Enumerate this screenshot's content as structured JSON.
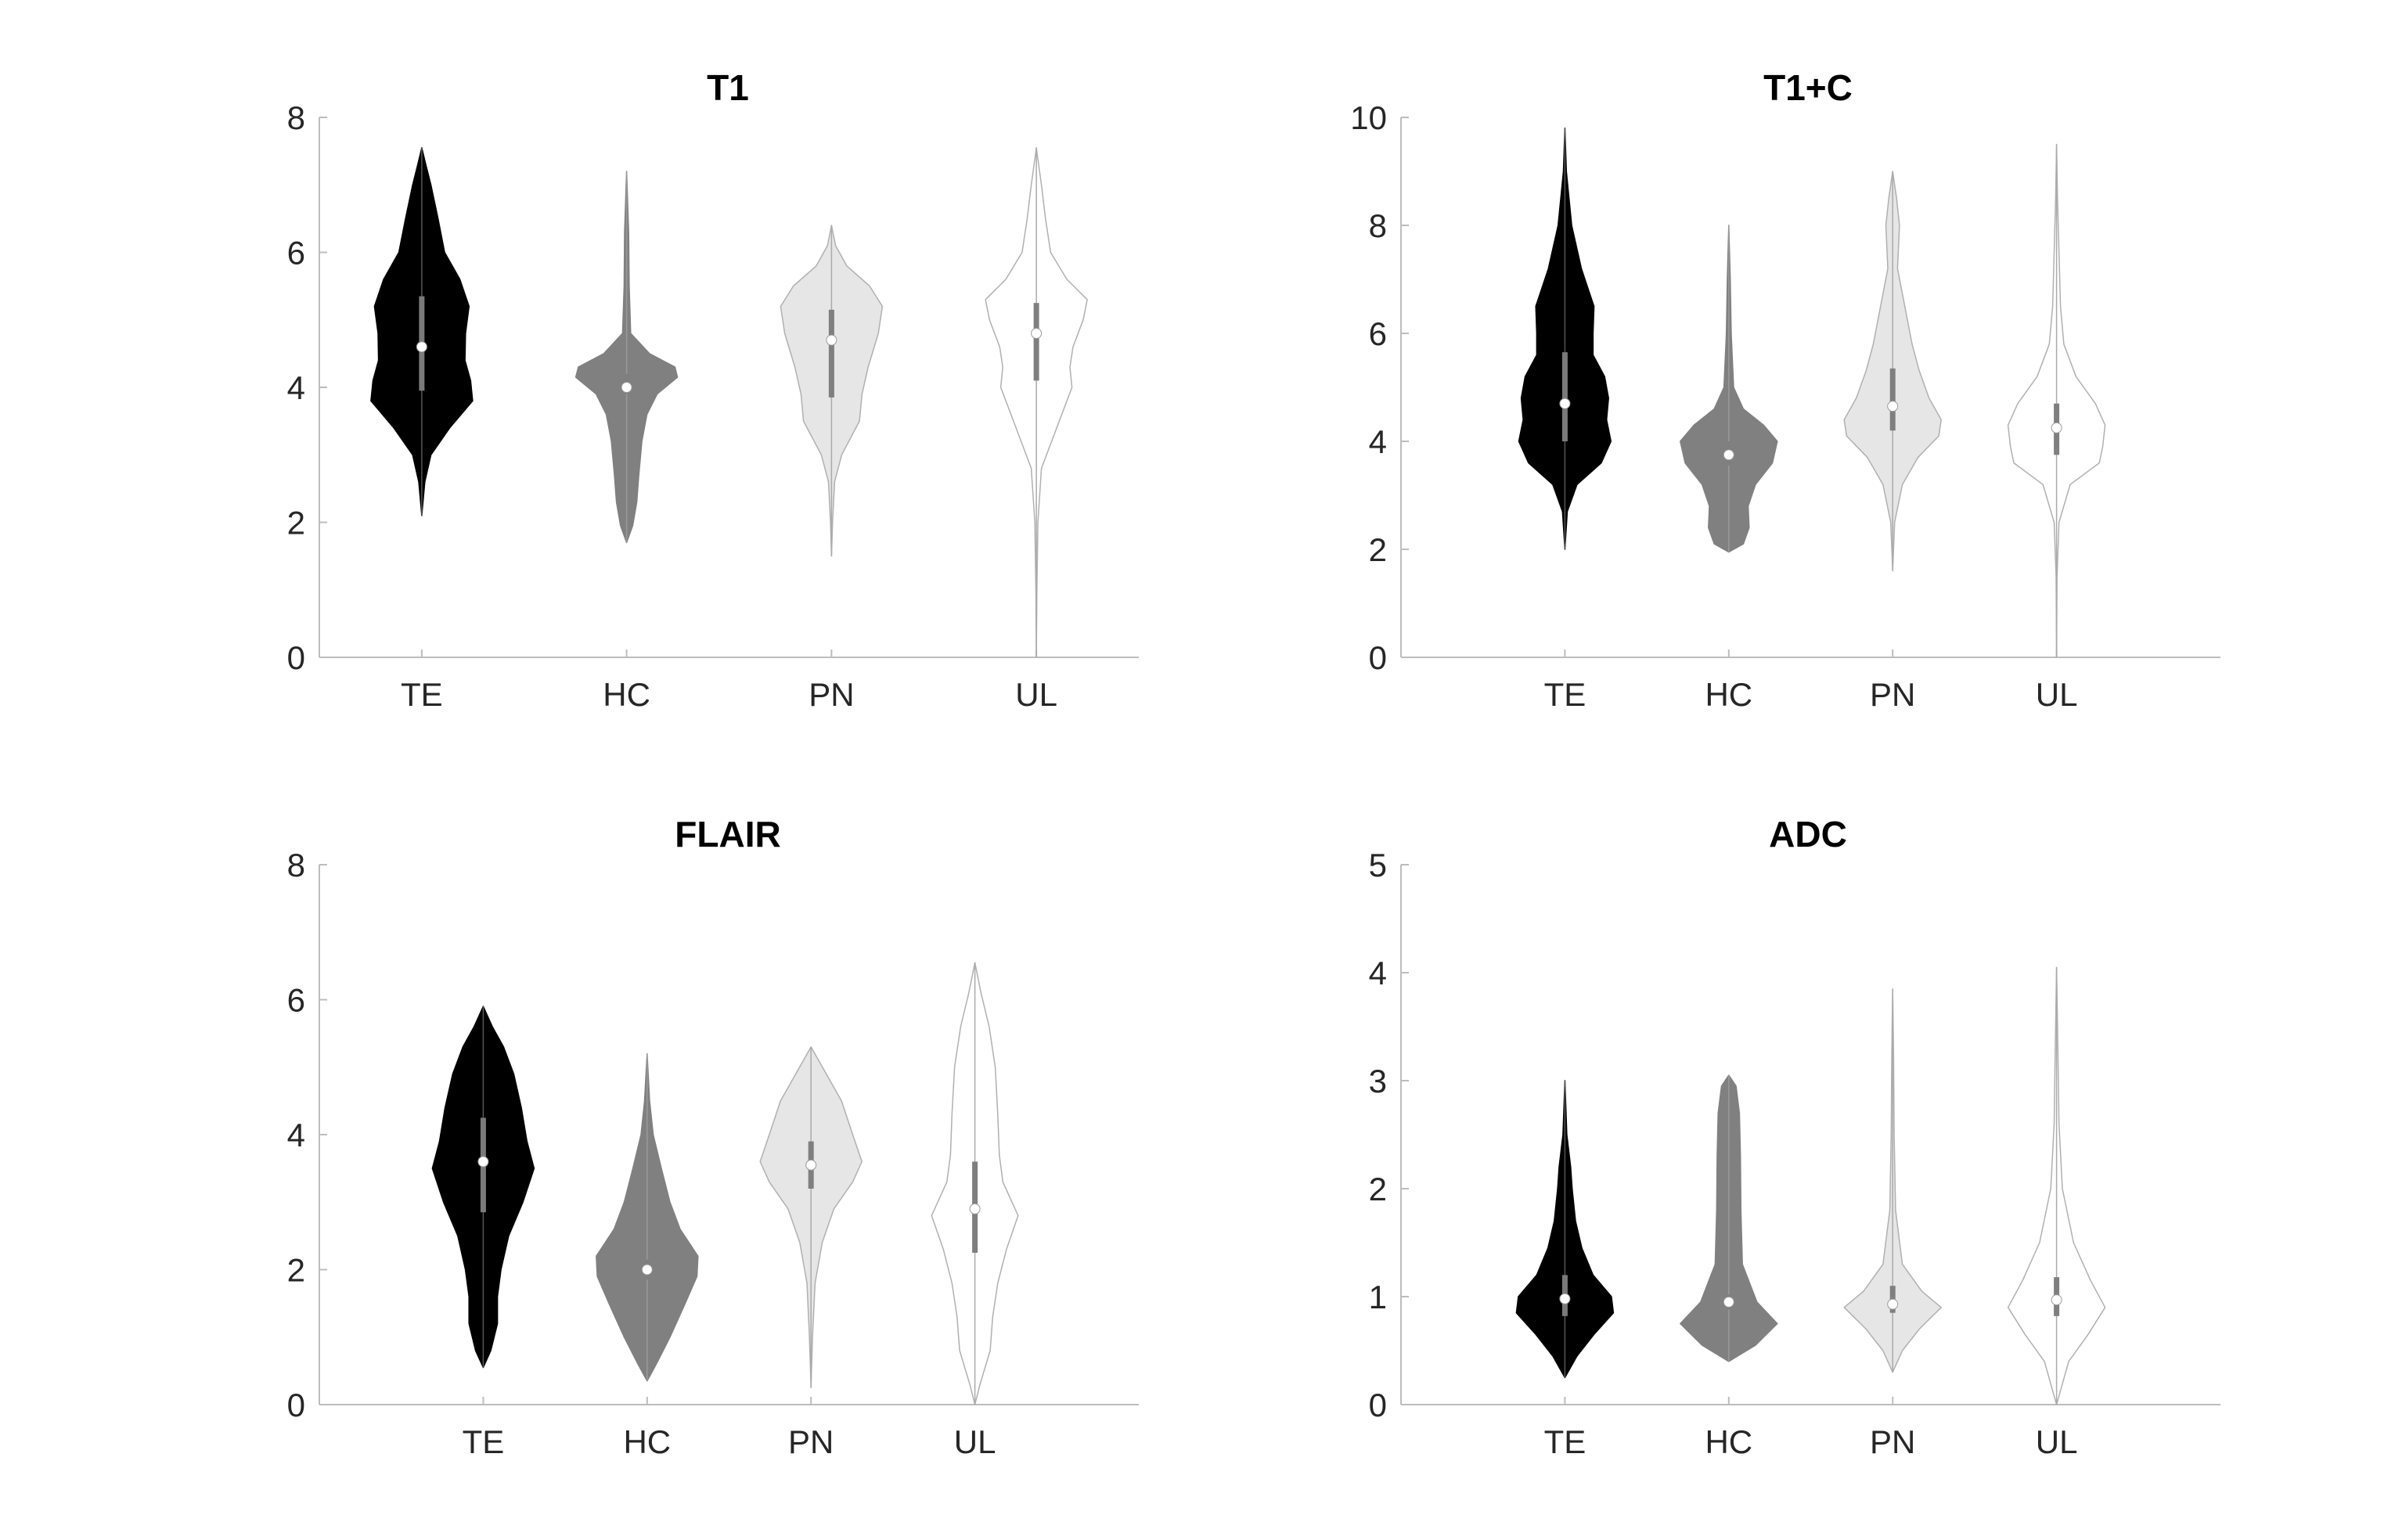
{
  "colors": {
    "TE": "#000000",
    "HC": "#808080",
    "PN": "#e6e6e6",
    "UL": "#ffffff",
    "outline": "#b0b0b0",
    "axis": "#bdbdbd",
    "text": "#262626"
  },
  "chart_data": [
    {
      "type": "violin",
      "title": "T1",
      "xlabel": "",
      "ylabel": "",
      "categories": [
        "TE",
        "HC",
        "PN",
        "UL"
      ],
      "xlim": [
        0.5,
        4.5
      ],
      "ylim": [
        0,
        8
      ],
      "yticks": [
        0,
        2,
        4,
        6,
        8
      ],
      "grid": false,
      "series": [
        {
          "category": "TE",
          "x": 1,
          "min": 2.1,
          "max": 7.55,
          "median": 4.6,
          "q1": 3.95,
          "q3": 5.35,
          "profile": [
            [
              2.1,
              0
            ],
            [
              2.6,
              0.06
            ],
            [
              3.0,
              0.18
            ],
            [
              3.4,
              0.55
            ],
            [
              3.8,
              1.0
            ],
            [
              4.1,
              0.96
            ],
            [
              4.4,
              0.85
            ],
            [
              4.8,
              0.86
            ],
            [
              5.2,
              0.93
            ],
            [
              5.6,
              0.75
            ],
            [
              6.0,
              0.45
            ],
            [
              6.5,
              0.32
            ],
            [
              7.0,
              0.18
            ],
            [
              7.3,
              0.08
            ],
            [
              7.55,
              0
            ]
          ]
        },
        {
          "category": "HC",
          "x": 2,
          "min": 1.7,
          "max": 7.2,
          "median": 4.0,
          "q1": 3.9,
          "q3": 4.2,
          "profile": [
            [
              1.7,
              0
            ],
            [
              1.95,
              0.12
            ],
            [
              2.3,
              0.2
            ],
            [
              2.7,
              0.24
            ],
            [
              3.2,
              0.3
            ],
            [
              3.6,
              0.4
            ],
            [
              3.9,
              0.6
            ],
            [
              4.15,
              1.0
            ],
            [
              4.3,
              0.95
            ],
            [
              4.5,
              0.45
            ],
            [
              4.8,
              0.08
            ],
            [
              5.5,
              0.05
            ],
            [
              6.3,
              0.04
            ],
            [
              7.2,
              0
            ]
          ]
        },
        {
          "category": "PN",
          "x": 3,
          "min": 1.5,
          "max": 6.4,
          "median": 4.7,
          "q1": 3.85,
          "q3": 5.15,
          "profile": [
            [
              1.5,
              0
            ],
            [
              2.0,
              0.02
            ],
            [
              2.6,
              0.06
            ],
            [
              3.0,
              0.2
            ],
            [
              3.5,
              0.55
            ],
            [
              3.9,
              0.6
            ],
            [
              4.3,
              0.72
            ],
            [
              4.8,
              0.92
            ],
            [
              5.2,
              1.0
            ],
            [
              5.5,
              0.75
            ],
            [
              5.8,
              0.3
            ],
            [
              6.1,
              0.08
            ],
            [
              6.4,
              0
            ]
          ]
        },
        {
          "category": "UL",
          "x": 4,
          "min": 0.0,
          "max": 7.55,
          "median": 4.8,
          "q1": 4.1,
          "q3": 5.25,
          "profile": [
            [
              0.0,
              0
            ],
            [
              1.0,
              0.01
            ],
            [
              2.0,
              0.03
            ],
            [
              2.8,
              0.1
            ],
            [
              3.5,
              0.45
            ],
            [
              4.0,
              0.7
            ],
            [
              4.3,
              0.66
            ],
            [
              4.6,
              0.72
            ],
            [
              5.0,
              0.92
            ],
            [
              5.3,
              1.0
            ],
            [
              5.6,
              0.6
            ],
            [
              6.0,
              0.28
            ],
            [
              6.5,
              0.18
            ],
            [
              7.0,
              0.1
            ],
            [
              7.55,
              0
            ]
          ]
        }
      ]
    },
    {
      "type": "violin",
      "title": "T1+C",
      "xlabel": "",
      "ylabel": "",
      "categories": [
        "TE",
        "HC",
        "PN",
        "UL"
      ],
      "xlim": [
        0,
        5
      ],
      "ylim": [
        0,
        10
      ],
      "yticks": [
        0,
        2,
        4,
        6,
        8,
        10
      ],
      "grid": false,
      "series": [
        {
          "category": "TE",
          "x": 1,
          "min": 2.0,
          "max": 9.8,
          "median": 4.7,
          "q1": 4.0,
          "q3": 5.65,
          "profile": [
            [
              2.0,
              0
            ],
            [
              2.7,
              0.05
            ],
            [
              3.2,
              0.25
            ],
            [
              3.6,
              0.75
            ],
            [
              4.0,
              0.95
            ],
            [
              4.4,
              0.86
            ],
            [
              4.8,
              0.9
            ],
            [
              5.2,
              0.82
            ],
            [
              5.6,
              0.58
            ],
            [
              6.0,
              0.58
            ],
            [
              6.5,
              0.6
            ],
            [
              7.2,
              0.34
            ],
            [
              8.0,
              0.14
            ],
            [
              9.0,
              0.03
            ],
            [
              9.8,
              0
            ]
          ]
        },
        {
          "category": "HC",
          "x": 2,
          "min": 1.95,
          "max": 8.0,
          "median": 3.75,
          "q1": 3.55,
          "q3": 4.0,
          "profile": [
            [
              1.95,
              0
            ],
            [
              2.1,
              0.3
            ],
            [
              2.4,
              0.42
            ],
            [
              2.8,
              0.4
            ],
            [
              3.2,
              0.55
            ],
            [
              3.6,
              0.9
            ],
            [
              4.0,
              1.0
            ],
            [
              4.3,
              0.72
            ],
            [
              4.6,
              0.3
            ],
            [
              5.0,
              0.1
            ],
            [
              6.0,
              0.05
            ],
            [
              7.0,
              0.03
            ],
            [
              8.0,
              0
            ]
          ]
        },
        {
          "category": "PN",
          "x": 3,
          "min": 1.6,
          "max": 9.0,
          "median": 4.65,
          "q1": 4.2,
          "q3": 5.35,
          "profile": [
            [
              1.6,
              0
            ],
            [
              2.5,
              0.04
            ],
            [
              3.2,
              0.2
            ],
            [
              3.7,
              0.52
            ],
            [
              4.1,
              0.95
            ],
            [
              4.4,
              1.0
            ],
            [
              4.8,
              0.75
            ],
            [
              5.3,
              0.55
            ],
            [
              5.8,
              0.4
            ],
            [
              6.5,
              0.25
            ],
            [
              7.2,
              0.1
            ],
            [
              8.0,
              0.14
            ],
            [
              8.5,
              0.08
            ],
            [
              9.0,
              0
            ]
          ]
        },
        {
          "category": "UL",
          "x": 4,
          "min": 0.0,
          "max": 9.5,
          "median": 4.25,
          "q1": 3.75,
          "q3": 4.7,
          "profile": [
            [
              0.0,
              0
            ],
            [
              1.5,
              0.01
            ],
            [
              2.5,
              0.05
            ],
            [
              3.2,
              0.28
            ],
            [
              3.6,
              0.88
            ],
            [
              3.9,
              0.95
            ],
            [
              4.3,
              1.0
            ],
            [
              4.7,
              0.8
            ],
            [
              5.2,
              0.4
            ],
            [
              5.8,
              0.15
            ],
            [
              6.5,
              0.08
            ],
            [
              7.5,
              0.05
            ],
            [
              8.5,
              0.02
            ],
            [
              9.5,
              0
            ]
          ]
        }
      ]
    },
    {
      "type": "violin",
      "title": "FLAIR",
      "xlabel": "",
      "ylabel": "",
      "categories": [
        "TE",
        "HC",
        "PN",
        "UL"
      ],
      "xlim": [
        0,
        5
      ],
      "ylim": [
        0,
        8
      ],
      "yticks": [
        0,
        2,
        4,
        6,
        8
      ],
      "grid": false,
      "series": [
        {
          "category": "TE",
          "x": 1,
          "min": 0.55,
          "max": 5.9,
          "median": 3.6,
          "q1": 2.85,
          "q3": 4.25,
          "profile": [
            [
              0.55,
              0
            ],
            [
              0.8,
              0.15
            ],
            [
              1.2,
              0.28
            ],
            [
              1.6,
              0.28
            ],
            [
              2.0,
              0.35
            ],
            [
              2.5,
              0.5
            ],
            [
              3.0,
              0.78
            ],
            [
              3.5,
              1.0
            ],
            [
              3.9,
              0.86
            ],
            [
              4.4,
              0.75
            ],
            [
              4.9,
              0.6
            ],
            [
              5.3,
              0.4
            ],
            [
              5.6,
              0.18
            ],
            [
              5.9,
              0
            ]
          ]
        },
        {
          "category": "HC",
          "x": 2,
          "min": 0.35,
          "max": 5.2,
          "median": 2.0,
          "q1": 1.85,
          "q3": 2.15,
          "profile": [
            [
              0.35,
              0
            ],
            [
              0.6,
              0.18
            ],
            [
              1.0,
              0.45
            ],
            [
              1.5,
              0.75
            ],
            [
              1.9,
              0.98
            ],
            [
              2.2,
              1.0
            ],
            [
              2.6,
              0.65
            ],
            [
              3.0,
              0.45
            ],
            [
              3.5,
              0.28
            ],
            [
              4.0,
              0.12
            ],
            [
              4.5,
              0.05
            ],
            [
              5.2,
              0
            ]
          ]
        },
        {
          "category": "PN",
          "x": 3,
          "min": 0.25,
          "max": 5.3,
          "median": 3.55,
          "q1": 3.2,
          "q3": 3.9,
          "profile": [
            [
              0.25,
              0
            ],
            [
              1.0,
              0.03
            ],
            [
              1.8,
              0.08
            ],
            [
              2.4,
              0.22
            ],
            [
              2.9,
              0.45
            ],
            [
              3.3,
              0.82
            ],
            [
              3.6,
              1.0
            ],
            [
              4.0,
              0.82
            ],
            [
              4.5,
              0.6
            ],
            [
              4.9,
              0.3
            ],
            [
              5.3,
              0
            ]
          ]
        },
        {
          "category": "UL",
          "x": 4,
          "min": 0.0,
          "max": 6.55,
          "median": 2.9,
          "q1": 2.25,
          "q3": 3.6,
          "profile": [
            [
              0.0,
              0
            ],
            [
              0.3,
              0.1
            ],
            [
              0.8,
              0.3
            ],
            [
              1.3,
              0.35
            ],
            [
              1.8,
              0.45
            ],
            [
              2.3,
              0.62
            ],
            [
              2.8,
              0.85
            ],
            [
              3.3,
              0.55
            ],
            [
              3.7,
              0.48
            ],
            [
              4.3,
              0.45
            ],
            [
              5.0,
              0.4
            ],
            [
              5.6,
              0.28
            ],
            [
              6.1,
              0.12
            ],
            [
              6.55,
              0
            ]
          ]
        }
      ]
    },
    {
      "type": "violin",
      "title": "ADC",
      "xlabel": "",
      "ylabel": "",
      "categories": [
        "TE",
        "HC",
        "PN",
        "UL"
      ],
      "xlim": [
        0,
        5
      ],
      "ylim": [
        0,
        5
      ],
      "yticks": [
        0,
        1,
        2,
        3,
        4,
        5
      ],
      "grid": false,
      "series": [
        {
          "category": "TE",
          "x": 1,
          "min": 0.25,
          "max": 3.0,
          "median": 0.98,
          "q1": 0.82,
          "q3": 1.2,
          "profile": [
            [
              0.25,
              0
            ],
            [
              0.45,
              0.25
            ],
            [
              0.65,
              0.6
            ],
            [
              0.85,
              1.0
            ],
            [
              1.0,
              0.96
            ],
            [
              1.2,
              0.58
            ],
            [
              1.45,
              0.35
            ],
            [
              1.7,
              0.22
            ],
            [
              2.0,
              0.15
            ],
            [
              2.2,
              0.12
            ],
            [
              2.5,
              0.04
            ],
            [
              3.0,
              0
            ]
          ]
        },
        {
          "category": "HC",
          "x": 2,
          "min": 0.4,
          "max": 3.05,
          "median": 0.95,
          "q1": 0.88,
          "q3": 1.02,
          "profile": [
            [
              0.4,
              0
            ],
            [
              0.55,
              0.55
            ],
            [
              0.75,
              1.0
            ],
            [
              0.95,
              0.58
            ],
            [
              1.3,
              0.28
            ],
            [
              1.8,
              0.25
            ],
            [
              2.3,
              0.24
            ],
            [
              2.7,
              0.22
            ],
            [
              2.95,
              0.15
            ],
            [
              3.05,
              0
            ]
          ]
        },
        {
          "category": "PN",
          "x": 3,
          "min": 0.3,
          "max": 3.85,
          "median": 0.93,
          "q1": 0.85,
          "q3": 1.1,
          "profile": [
            [
              0.3,
              0
            ],
            [
              0.5,
              0.2
            ],
            [
              0.7,
              0.55
            ],
            [
              0.9,
              1.0
            ],
            [
              1.05,
              0.6
            ],
            [
              1.3,
              0.2
            ],
            [
              1.8,
              0.06
            ],
            [
              2.5,
              0.03
            ],
            [
              3.2,
              0.02
            ],
            [
              3.85,
              0
            ]
          ]
        },
        {
          "category": "UL",
          "x": 4,
          "min": 0.0,
          "max": 4.05,
          "median": 0.97,
          "q1": 0.82,
          "q3": 1.18,
          "profile": [
            [
              0.0,
              0
            ],
            [
              0.4,
              0.25
            ],
            [
              0.65,
              0.65
            ],
            [
              0.9,
              1.0
            ],
            [
              1.15,
              0.7
            ],
            [
              1.5,
              0.35
            ],
            [
              2.0,
              0.12
            ],
            [
              2.6,
              0.05
            ],
            [
              3.2,
              0.03
            ],
            [
              4.05,
              0
            ]
          ]
        }
      ]
    }
  ]
}
